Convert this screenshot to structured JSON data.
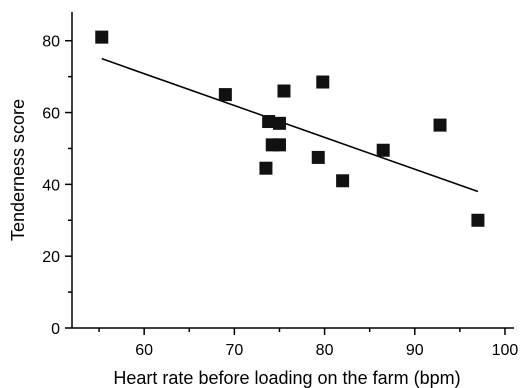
{
  "chart_data": {
    "type": "scatter",
    "xlabel": "Heart rate before loading on the farm (bpm)",
    "ylabel": "Tenderness score",
    "xlim": [
      52,
      101
    ],
    "ylim": [
      0,
      88
    ],
    "x_ticks": [
      60,
      70,
      80,
      90,
      100
    ],
    "y_ticks": [
      0,
      20,
      40,
      60,
      80
    ],
    "x_tick_labels": [
      "60",
      "70",
      "80",
      "90",
      "100"
    ],
    "y_tick_labels": [
      "0",
      "20",
      "40",
      "60",
      "80"
    ],
    "grid": false,
    "marker": "square",
    "points": [
      {
        "x": 55.3,
        "y": 81
      },
      {
        "x": 69.0,
        "y": 65
      },
      {
        "x": 73.5,
        "y": 44.5
      },
      {
        "x": 73.8,
        "y": 57.5
      },
      {
        "x": 74.2,
        "y": 51
      },
      {
        "x": 75.0,
        "y": 57
      },
      {
        "x": 75.0,
        "y": 51
      },
      {
        "x": 75.5,
        "y": 66
      },
      {
        "x": 79.3,
        "y": 47.5
      },
      {
        "x": 79.8,
        "y": 68.5
      },
      {
        "x": 82.0,
        "y": 41
      },
      {
        "x": 86.5,
        "y": 49.5
      },
      {
        "x": 92.8,
        "y": 56.5
      },
      {
        "x": 97.0,
        "y": 30
      }
    ],
    "trendline": {
      "x": [
        55.3,
        97.0
      ],
      "y": [
        75,
        38
      ]
    }
  }
}
